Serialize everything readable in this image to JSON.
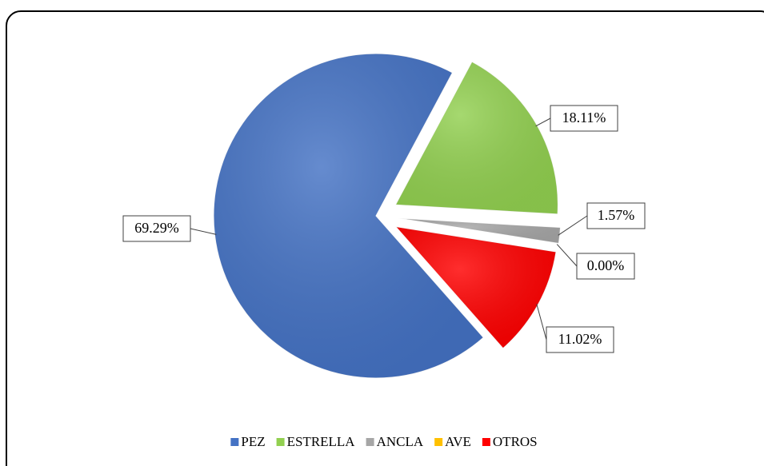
{
  "chart_data": {
    "type": "pie",
    "categories": [
      "PEZ",
      "ESTRELLA",
      "ANCLA",
      "AVE",
      "OTROS"
    ],
    "values": [
      69.29,
      18.11,
      1.57,
      0.0,
      11.02
    ],
    "value_labels": [
      "69.29%",
      "18.11%",
      "1.57%",
      "0.00%",
      "11.02%"
    ],
    "colors": [
      "#4472c4",
      "#92d050",
      "#a6a6a6",
      "#ffc000",
      "#ff0000"
    ],
    "legend": "bottom"
  }
}
